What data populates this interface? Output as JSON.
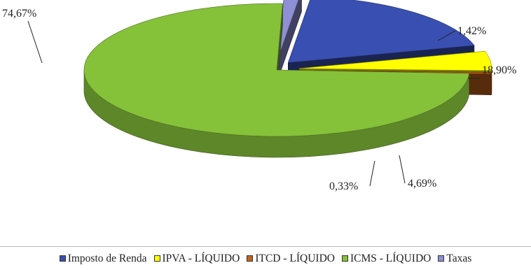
{
  "chart_data": {
    "type": "pie",
    "title": "",
    "categories": [
      "Imposto de Renda",
      "IPVA -  LÍQUIDO",
      "ITCD  - LÍQUIDO",
      "ICMS - LÍQUIDO",
      "Taxas"
    ],
    "values": [
      18.9,
      4.69,
      0.33,
      74.67,
      1.42
    ],
    "data_labels": [
      "18,90%",
      "4,69%",
      "0,33%",
      "74,67%",
      "1,42%"
    ],
    "colors": [
      "#3a4fb2",
      "#ffff00",
      "#c2621c",
      "#86c13a",
      "#8f8fd6"
    ],
    "legend_position": "bottom",
    "style": "3d-exploded"
  },
  "legend": {
    "items": [
      {
        "label": "Imposto de Renda",
        "color": "#3a4fb2"
      },
      {
        "label": "IPVA -  LÍQUIDO",
        "color": "#ffff00"
      },
      {
        "label": "ITCD  - LÍQUIDO",
        "color": "#c2621c"
      },
      {
        "label": "ICMS - LÍQUIDO",
        "color": "#86c13a"
      },
      {
        "label": "Taxas",
        "color": "#8f8fd6"
      }
    ]
  }
}
